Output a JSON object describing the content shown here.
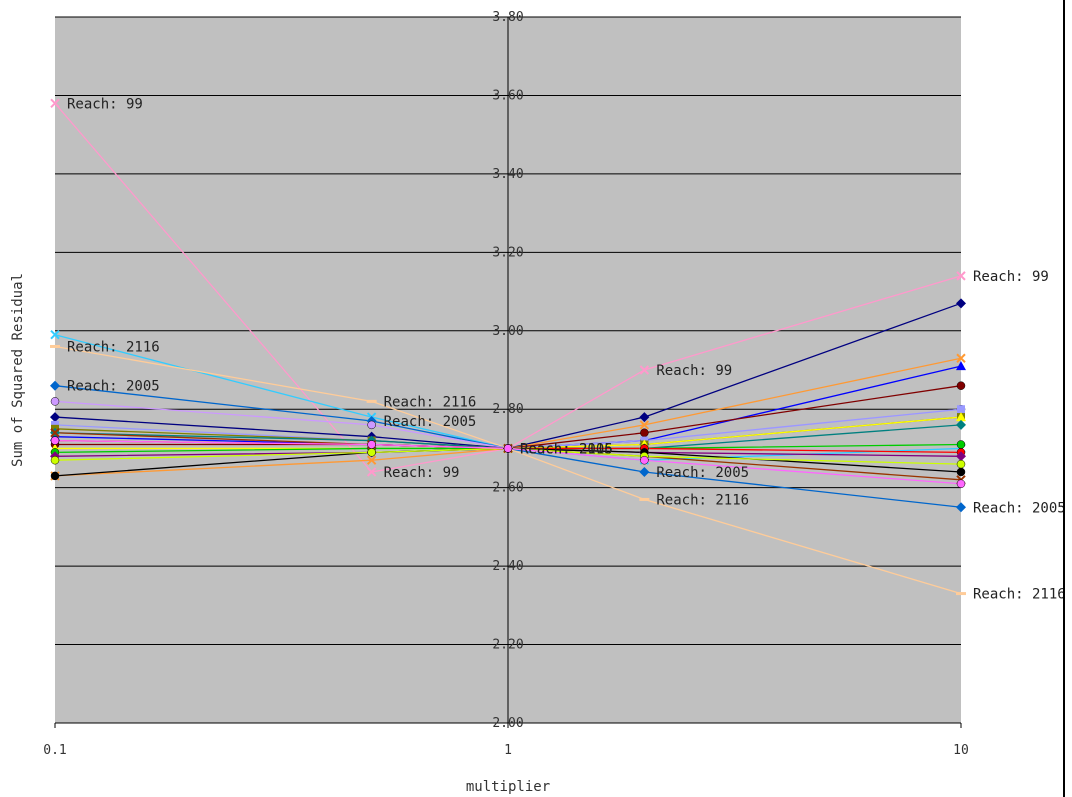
{
  "chart_data": {
    "type": "line",
    "xlabel": "multiplier",
    "ylabel": "Sum of Squared Residual",
    "x": [
      0.1,
      0.5,
      1,
      2,
      10
    ],
    "x_tick_labels": [
      "0.1",
      "1",
      "10"
    ],
    "xscale": "log",
    "ylim": [
      2.0,
      3.8
    ],
    "y_tick_labels": [
      "2.00",
      "2.20",
      "2.40",
      "2.60",
      "2.80",
      "3.00",
      "3.20",
      "3.40",
      "3.60",
      "3.80"
    ],
    "grid": "horizontal",
    "background": "#c0c0c0",
    "series": [
      {
        "color": "#ff99cc",
        "marker": "x",
        "values": [
          3.58,
          2.64,
          2.7,
          2.9,
          3.14
        ]
      },
      {
        "color": "#33ccff",
        "marker": "x",
        "values": [
          2.99,
          2.78,
          2.7,
          2.67,
          2.7
        ]
      },
      {
        "color": "#ffcc99",
        "marker": "dash",
        "values": [
          2.96,
          2.82,
          2.7,
          2.57,
          2.33
        ]
      },
      {
        "color": "#0066cc",
        "marker": "diamond",
        "values": [
          2.86,
          2.77,
          2.7,
          2.64,
          2.55
        ]
      },
      {
        "color": "#cc99ff",
        "marker": "circle",
        "values": [
          2.82,
          2.76,
          2.7,
          2.72,
          2.8
        ]
      },
      {
        "color": "#000080",
        "marker": "diamond",
        "values": [
          2.78,
          2.73,
          2.7,
          2.78,
          3.07
        ]
      },
      {
        "color": "#ff9933",
        "marker": "x",
        "values": [
          2.63,
          2.67,
          2.7,
          2.76,
          2.93
        ]
      },
      {
        "color": "#0000ff",
        "marker": "triangle",
        "values": [
          2.73,
          2.71,
          2.7,
          2.72,
          2.91
        ]
      },
      {
        "color": "#800000",
        "marker": "circle",
        "values": [
          2.71,
          2.71,
          2.7,
          2.74,
          2.86
        ]
      },
      {
        "color": "#9999ff",
        "marker": "square",
        "values": [
          2.76,
          2.72,
          2.7,
          2.72,
          2.8
        ]
      },
      {
        "color": "#808000",
        "marker": "square",
        "values": [
          2.75,
          2.72,
          2.7,
          2.71,
          2.78
        ]
      },
      {
        "color": "#ffff00",
        "marker": "triangle",
        "values": [
          2.7,
          2.7,
          2.7,
          2.71,
          2.78
        ]
      },
      {
        "color": "#008080",
        "marker": "diamond",
        "values": [
          2.74,
          2.72,
          2.7,
          2.7,
          2.76
        ]
      },
      {
        "color": "#00cc00",
        "marker": "circle",
        "values": [
          2.69,
          2.7,
          2.7,
          2.7,
          2.71
        ]
      },
      {
        "color": "#ff0000",
        "marker": "circle",
        "values": [
          2.72,
          2.71,
          2.7,
          2.7,
          2.69
        ]
      },
      {
        "color": "#800080",
        "marker": "diamond",
        "values": [
          2.68,
          2.69,
          2.7,
          2.69,
          2.68
        ]
      },
      {
        "color": "#993300",
        "marker": "x",
        "values": [
          2.74,
          2.71,
          2.7,
          2.68,
          2.62
        ]
      },
      {
        "color": "#000000",
        "marker": "circle",
        "values": [
          2.63,
          2.69,
          2.7,
          2.69,
          2.64
        ]
      },
      {
        "color": "#ccff00",
        "marker": "circle",
        "values": [
          2.67,
          2.69,
          2.7,
          2.68,
          2.66
        ]
      },
      {
        "color": "#ff66ff",
        "marker": "circle",
        "values": [
          2.72,
          2.71,
          2.7,
          2.67,
          2.61
        ]
      }
    ],
    "annotations": [
      {
        "text": "Reach: 99",
        "x": 0.1,
        "y": 3.58
      },
      {
        "text": "Reach: 2116",
        "x": 0.1,
        "y": 2.96
      },
      {
        "text": "Reach: 2005",
        "x": 0.1,
        "y": 2.86
      },
      {
        "text": "Reach: 2116",
        "x": 0.5,
        "y": 2.82
      },
      {
        "text": "Reach: 2005",
        "x": 0.5,
        "y": 2.77
      },
      {
        "text": "Reach: 99",
        "x": 0.5,
        "y": 2.64
      },
      {
        "text": "Reach: 2005",
        "x": 1,
        "y": 2.7
      },
      {
        "text": "Reach: 2116",
        "x": 1,
        "y": 2.7
      },
      {
        "text": "Reach: 99",
        "x": 2,
        "y": 2.9
      },
      {
        "text": "Reach: 2005",
        "x": 2,
        "y": 2.64
      },
      {
        "text": "Reach: 2116",
        "x": 2,
        "y": 2.57
      },
      {
        "text": "Reach: 99",
        "x": 10,
        "y": 3.14
      },
      {
        "text": "Reach: 2005",
        "x": 10,
        "y": 2.55
      },
      {
        "text": "Reach: 2116",
        "x": 10,
        "y": 2.33
      }
    ]
  }
}
